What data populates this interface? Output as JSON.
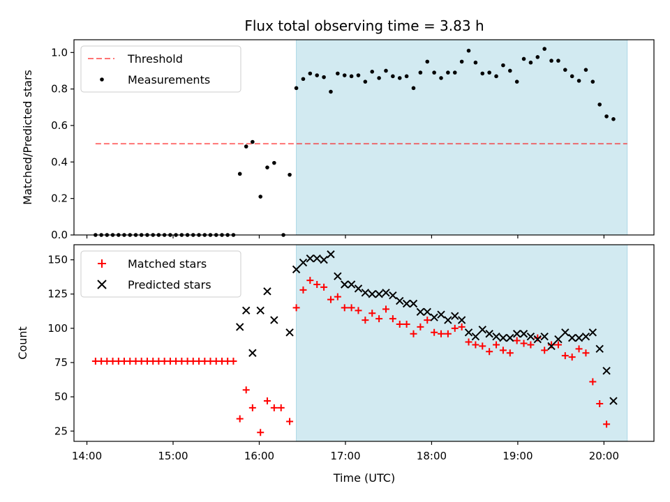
{
  "chart_data": {
    "title": "Flux total observing time = 3.83 h",
    "xlabel": "Time (UTC)",
    "x_tick_labels": [
      "14:00",
      "15:00",
      "16:00",
      "17:00",
      "18:00",
      "19:00",
      "20:00"
    ],
    "x_ticks_hours": [
      14,
      15,
      16,
      17,
      18,
      19,
      20
    ],
    "xlim_hours": [
      13.85,
      20.58
    ],
    "highlight_span_hours": [
      16.43,
      20.27
    ],
    "colors": {
      "highlight": "#add8e6",
      "threshold": "#ff0000",
      "measurement": "#000000",
      "matched": "#ff0000",
      "predicted": "#000000"
    },
    "panels": [
      {
        "type": "scatter",
        "ylabel": "Matched/Predicted stars",
        "ylim": [
          0,
          1.07
        ],
        "y_ticks": [
          0.0,
          0.2,
          0.4,
          0.6,
          0.8,
          1.0
        ],
        "y_tick_labels": [
          "0.0",
          "0.2",
          "0.4",
          "0.6",
          "0.8",
          "1.0"
        ],
        "legend_position": "top-left",
        "threshold": {
          "name": "Threshold",
          "y": 0.5,
          "x_range": [
            14.1,
            20.27
          ]
        },
        "series": [
          {
            "name": "Measurements",
            "x": [
              14.1,
              14.167,
              14.233,
              14.3,
              14.367,
              14.433,
              14.5,
              14.567,
              14.633,
              14.7,
              14.767,
              14.833,
              14.9,
              14.967,
              15.033,
              15.1,
              15.167,
              15.233,
              15.3,
              15.367,
              15.433,
              15.5,
              15.567,
              15.633,
              15.7,
              15.775,
              15.848,
              15.922,
              16.014,
              16.093,
              16.173,
              16.28,
              16.353,
              16.43,
              16.51,
              16.59,
              16.67,
              16.75,
              16.83,
              16.91,
              16.99,
              17.07,
              17.15,
              17.23,
              17.31,
              17.39,
              17.47,
              17.55,
              17.63,
              17.71,
              17.79,
              17.87,
              17.95,
              18.03,
              18.11,
              18.19,
              18.27,
              18.35,
              18.43,
              18.51,
              18.59,
              18.67,
              18.75,
              18.83,
              18.91,
              18.99,
              19.07,
              19.15,
              19.23,
              19.31,
              19.39,
              19.47,
              19.55,
              19.63,
              19.71,
              19.79,
              19.87,
              19.95,
              20.03,
              20.11,
              20.19,
              20.27
            ],
            "y": [
              0,
              0,
              0,
              0,
              0,
              0,
              0,
              0,
              0,
              0,
              0,
              0,
              0,
              0,
              0,
              0,
              0,
              0,
              0,
              0,
              0,
              0,
              0,
              0,
              0,
              0.335,
              0.485,
              0.51,
              0.21,
              0.37,
              0.395,
              0,
              0.33,
              0.805,
              0.855,
              0.885,
              0.875,
              0.865,
              0.785,
              0.885,
              0.875,
              0.87,
              0.875,
              0.84,
              0.895,
              0.86,
              0.9,
              0.87,
              0.86,
              0.87,
              0.805,
              0.89,
              0.95,
              0.89,
              0.86,
              0.89,
              0.89,
              0.95,
              1.01,
              0.945,
              0.885,
              0.89,
              0.87,
              0.93,
              0.9,
              0.84,
              0.965,
              0.945,
              0.975,
              1.02,
              0.955,
              0.955,
              0.905,
              0.87,
              0.845,
              0.905,
              0.84,
              0.715,
              0.65,
              0.635,
              null,
              null
            ]
          }
        ]
      },
      {
        "type": "scatter",
        "ylabel": "Count",
        "ylim": [
          17.5,
          161
        ],
        "y_ticks": [
          25,
          50,
          75,
          100,
          125,
          150
        ],
        "y_tick_labels": [
          "25",
          "50",
          "75",
          "100",
          "125",
          "150"
        ],
        "legend_position": "top-left",
        "series": [
          {
            "name": "Matched stars",
            "marker": "plus",
            "x": [
              14.1,
              14.167,
              14.233,
              14.3,
              14.367,
              14.433,
              14.5,
              14.567,
              14.633,
              14.7,
              14.767,
              14.833,
              14.9,
              14.967,
              15.033,
              15.1,
              15.167,
              15.233,
              15.3,
              15.367,
              15.433,
              15.5,
              15.567,
              15.633,
              15.7,
              15.775,
              15.848,
              15.922,
              16.014,
              16.093,
              16.173,
              16.253,
              16.353,
              16.43,
              16.51,
              16.59,
              16.67,
              16.75,
              16.83,
              16.91,
              16.99,
              17.07,
              17.15,
              17.23,
              17.31,
              17.39,
              17.47,
              17.55,
              17.63,
              17.71,
              17.79,
              17.87,
              17.95,
              18.03,
              18.11,
              18.19,
              18.27,
              18.35,
              18.43,
              18.51,
              18.59,
              18.67,
              18.75,
              18.83,
              18.91,
              18.99,
              19.07,
              19.15,
              19.23,
              19.31,
              19.39,
              19.47,
              19.55,
              19.63,
              19.71,
              19.79,
              19.87,
              19.95,
              20.03,
              20.11,
              20.19,
              20.27
            ],
            "y": [
              76,
              76,
              76,
              76,
              76,
              76,
              76,
              76,
              76,
              76,
              76,
              76,
              76,
              76,
              76,
              76,
              76,
              76,
              76,
              76,
              76,
              76,
              76,
              76,
              76,
              34,
              55,
              42,
              24,
              47,
              42,
              42,
              32,
              115,
              128,
              135,
              132,
              130,
              121,
              123,
              115,
              115,
              113,
              106,
              111,
              107,
              114,
              107,
              103,
              103,
              96,
              101,
              106,
              97,
              96,
              96,
              100,
              101,
              90,
              88,
              87,
              83,
              88,
              84,
              82,
              91,
              89,
              88,
              93,
              84,
              88,
              88,
              80,
              79,
              85,
              82,
              61,
              45,
              30,
              null,
              null,
              null
            ],
            "name_note": ""
          },
          {
            "name": "Predicted stars",
            "marker": "x",
            "x": [
              15.775,
              15.848,
              15.922,
              16.014,
              16.093,
              16.173,
              16.353,
              16.43,
              16.51,
              16.59,
              16.67,
              16.75,
              16.83,
              16.91,
              16.99,
              17.07,
              17.15,
              17.23,
              17.31,
              17.39,
              17.47,
              17.55,
              17.63,
              17.71,
              17.79,
              17.87,
              17.95,
              18.03,
              18.11,
              18.19,
              18.27,
              18.35,
              18.43,
              18.51,
              18.59,
              18.67,
              18.75,
              18.83,
              18.91,
              18.99,
              19.07,
              19.15,
              19.23,
              19.31,
              19.39,
              19.47,
              19.55,
              19.63,
              19.71,
              19.79,
              19.87,
              19.95,
              20.03,
              20.11,
              20.19,
              20.27
            ],
            "y": [
              101,
              113,
              82,
              113,
              127,
              106,
              97,
              143,
              148,
              151,
              151,
              150,
              154,
              138,
              132,
              132,
              129,
              126,
              125,
              125,
              126,
              124,
              120,
              118,
              118,
              112,
              112,
              108,
              110,
              106,
              109,
              106,
              97,
              94,
              99,
              96,
              94,
              93,
              93,
              96,
              96,
              94,
              92,
              94,
              87,
              92,
              97,
              93,
              93,
              94,
              97,
              85,
              69,
              47,
              null,
              null
            ]
          }
        ]
      }
    ]
  }
}
